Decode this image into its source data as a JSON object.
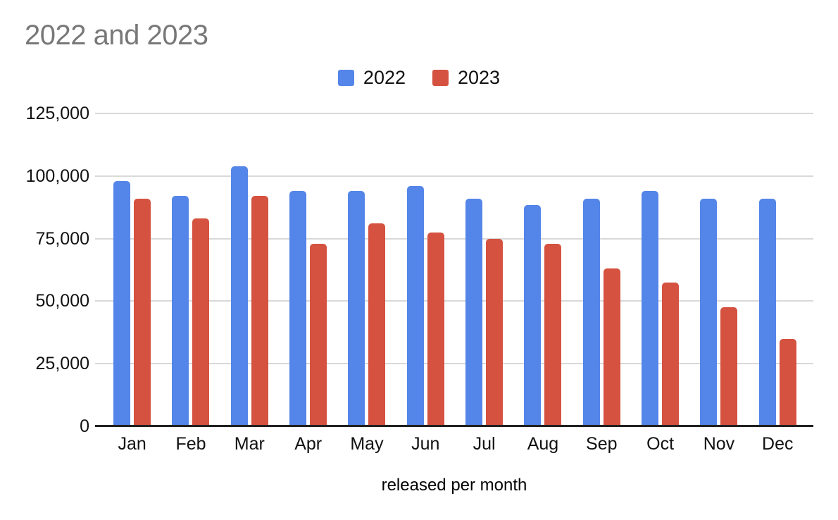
{
  "header": {
    "title": "2022 and 2023",
    "title_color": "#787878"
  },
  "legend": {
    "position": "top-center",
    "items": [
      {
        "label": "2022",
        "color": "#5485E8"
      },
      {
        "label": "2023",
        "color": "#D55140"
      }
    ]
  },
  "chart_data": {
    "type": "bar",
    "title": "2022 and 2023",
    "categories": [
      "Jan",
      "Feb",
      "Mar",
      "Apr",
      "May",
      "Jun",
      "Jul",
      "Aug",
      "Sep",
      "Oct",
      "Nov",
      "Dec"
    ],
    "series": [
      {
        "name": "2022",
        "color": "#5485E8",
        "values": [
          98000,
          92000,
          104000,
          94000,
          94000,
          96000,
          91000,
          88500,
          91000,
          94000,
          91000,
          91000
        ]
      },
      {
        "name": "2023",
        "color": "#D55140",
        "values": [
          91000,
          83000,
          92000,
          73000,
          81000,
          77500,
          75000,
          73000,
          63000,
          57500,
          47500,
          35000
        ]
      }
    ],
    "xlabel": "released per month",
    "ylabel": "",
    "ylim": [
      0,
      125000
    ],
    "yticks": [
      0,
      25000,
      50000,
      75000,
      100000,
      125000
    ],
    "ytick_labels": [
      "0",
      "25,000",
      "50,000",
      "75,000",
      "100,000",
      "125,000"
    ],
    "grid": true,
    "legend_position": "top",
    "gridline_color": "#d9d9d9",
    "axis_line_color": "#212121",
    "text_color": "#111111",
    "background_color": "#ffffff"
  }
}
